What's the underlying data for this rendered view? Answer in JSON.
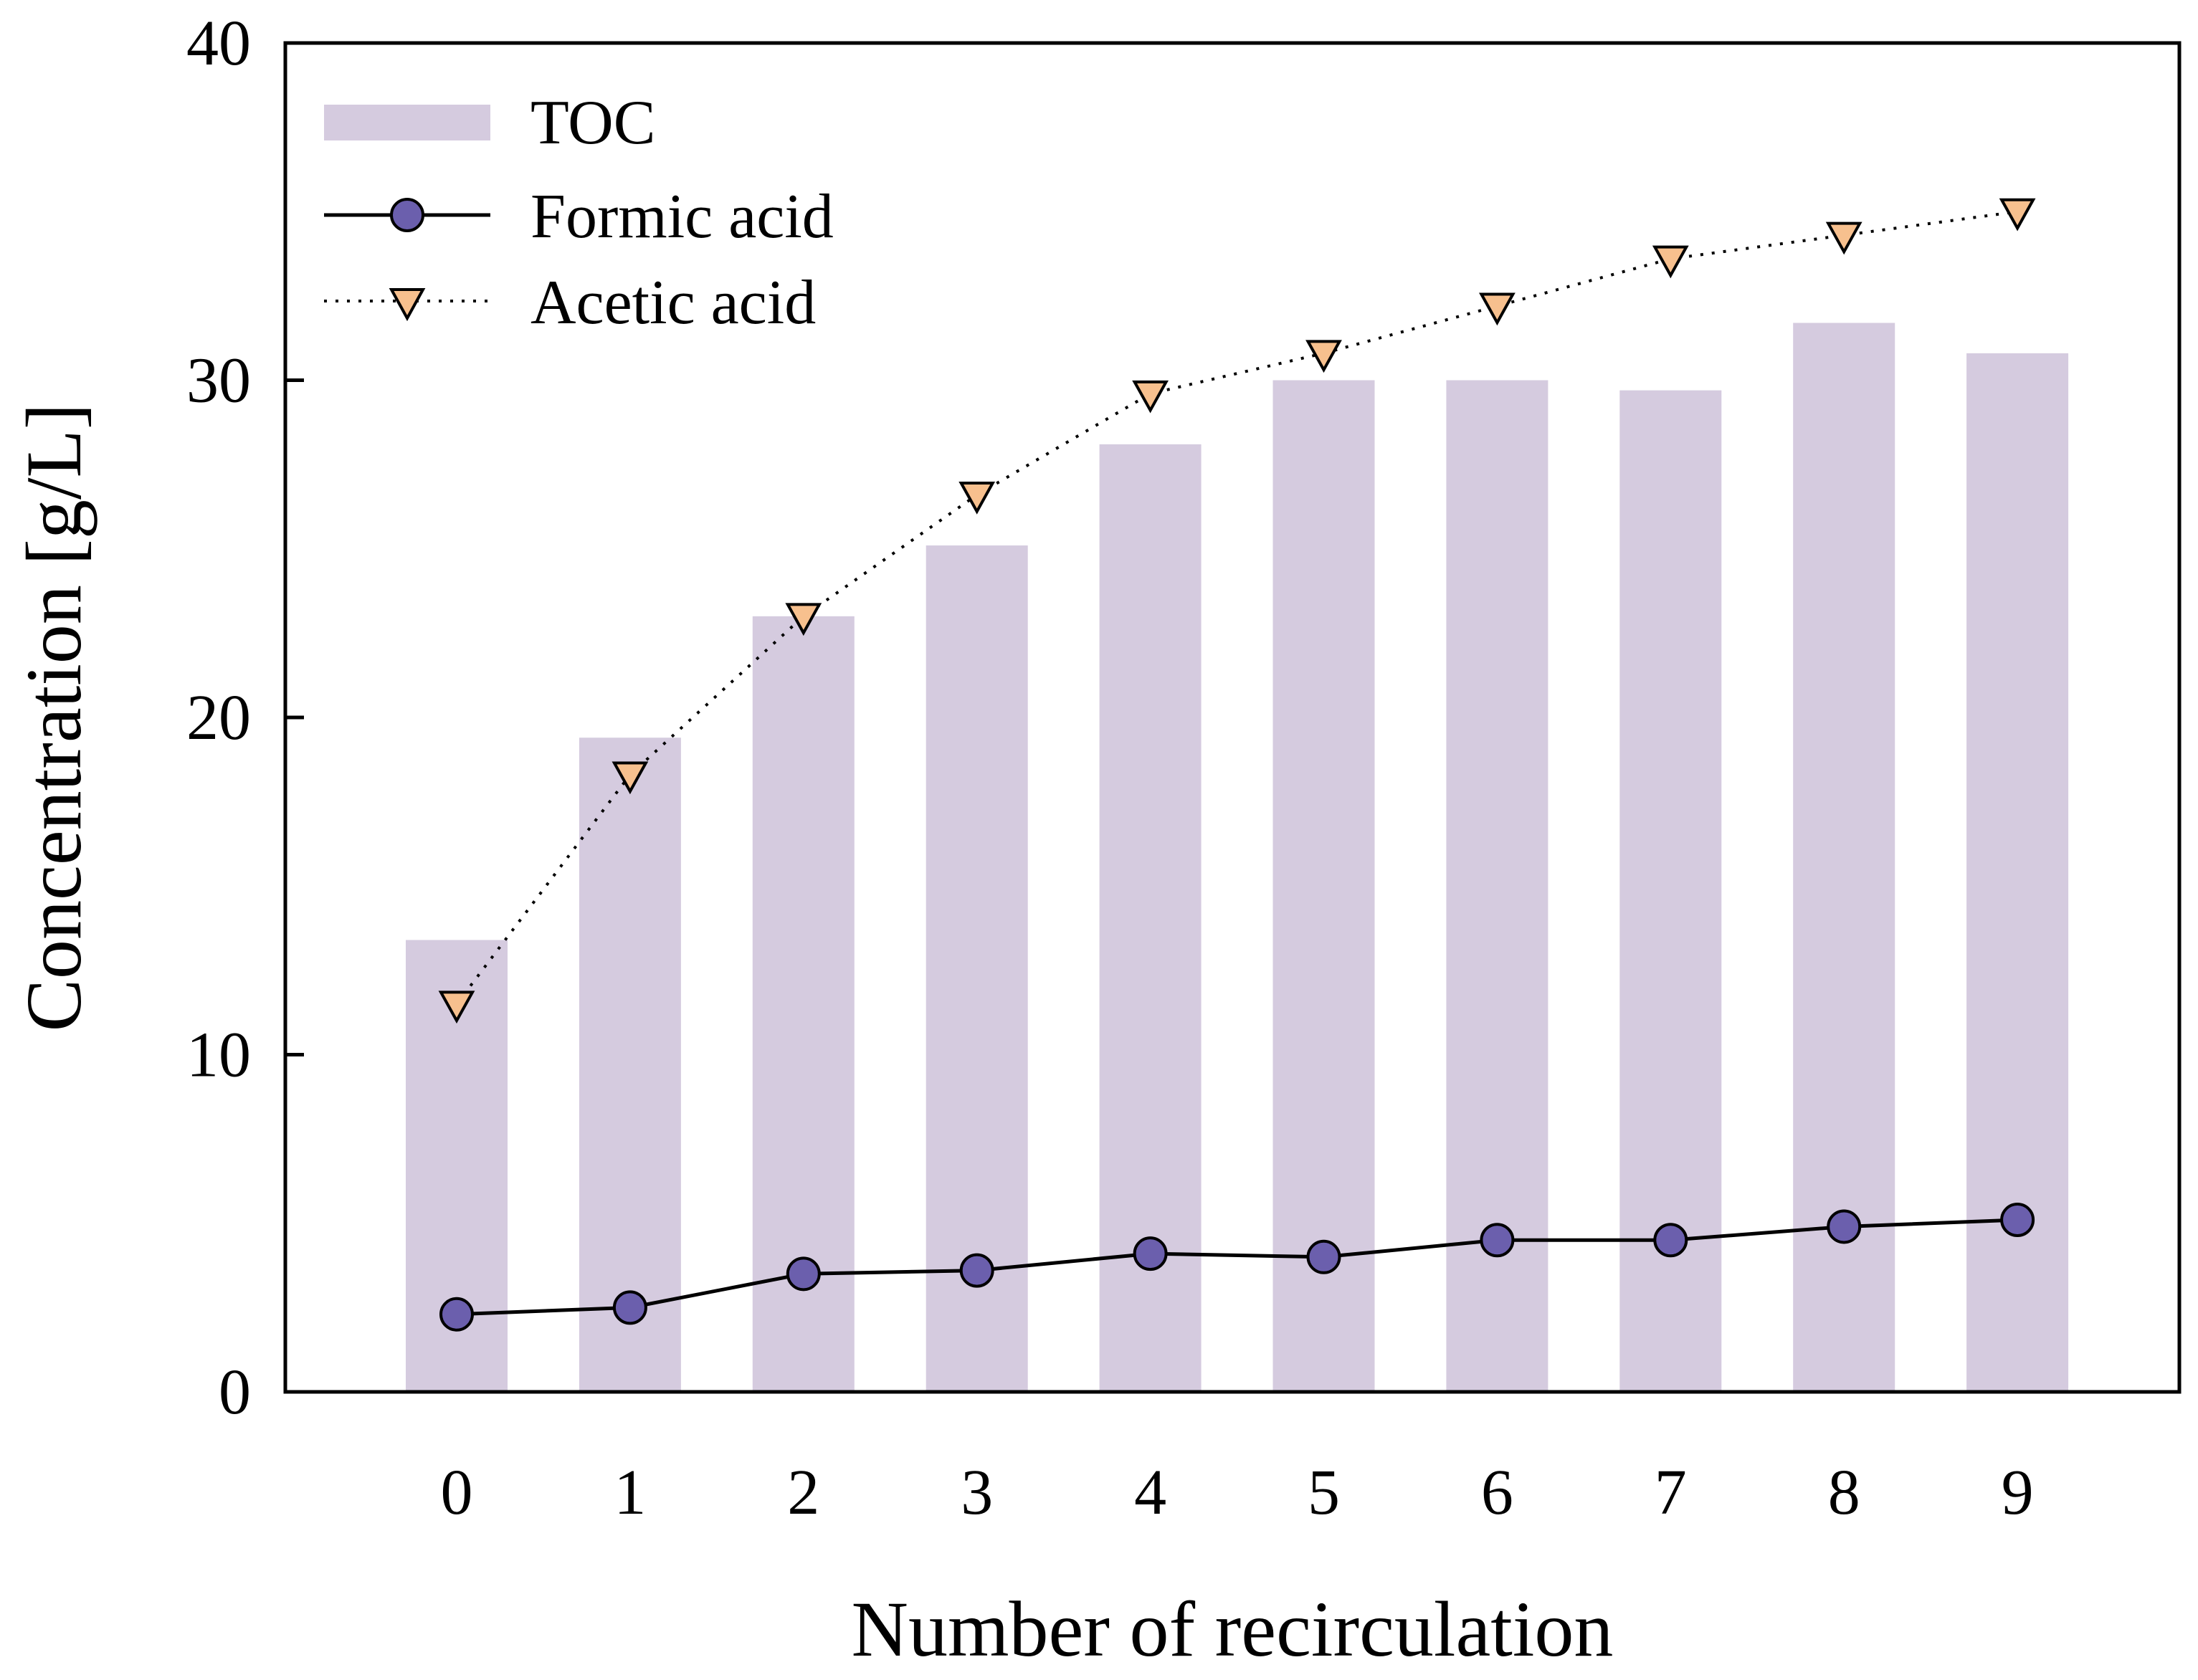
{
  "chart_data": {
    "type": "bar",
    "title": "",
    "xlabel": "Number of recirculation",
    "ylabel": "Concentration [g/L]",
    "ylim": [
      0,
      40
    ],
    "yticks": [
      "0",
      "10",
      "20",
      "30",
      "40"
    ],
    "categories": [
      "0",
      "1",
      "2",
      "3",
      "4",
      "5",
      "6",
      "7",
      "8",
      "9"
    ],
    "grid": false,
    "legend_position": "top-left",
    "series": [
      {
        "name": "TOC",
        "kind": "bar",
        "color": "#d5cbdf",
        "values": [
          13.4,
          19.4,
          23.0,
          25.1,
          28.1,
          30.0,
          30.0,
          29.7,
          31.7,
          30.8
        ]
      },
      {
        "name": "Formic acid",
        "kind": "line",
        "line_style": "solid",
        "marker": "circle",
        "color": "#6b5fad",
        "values": [
          2.3,
          2.5,
          3.5,
          3.6,
          4.1,
          4.0,
          4.5,
          4.5,
          4.9,
          5.1
        ]
      },
      {
        "name": "Acetic acid",
        "kind": "line",
        "line_style": "dotted",
        "marker": "triangle-down",
        "color": "#f7c08e",
        "values": [
          11.5,
          18.3,
          23.0,
          26.6,
          29.6,
          30.8,
          32.2,
          33.6,
          34.3,
          35.0
        ]
      }
    ]
  }
}
